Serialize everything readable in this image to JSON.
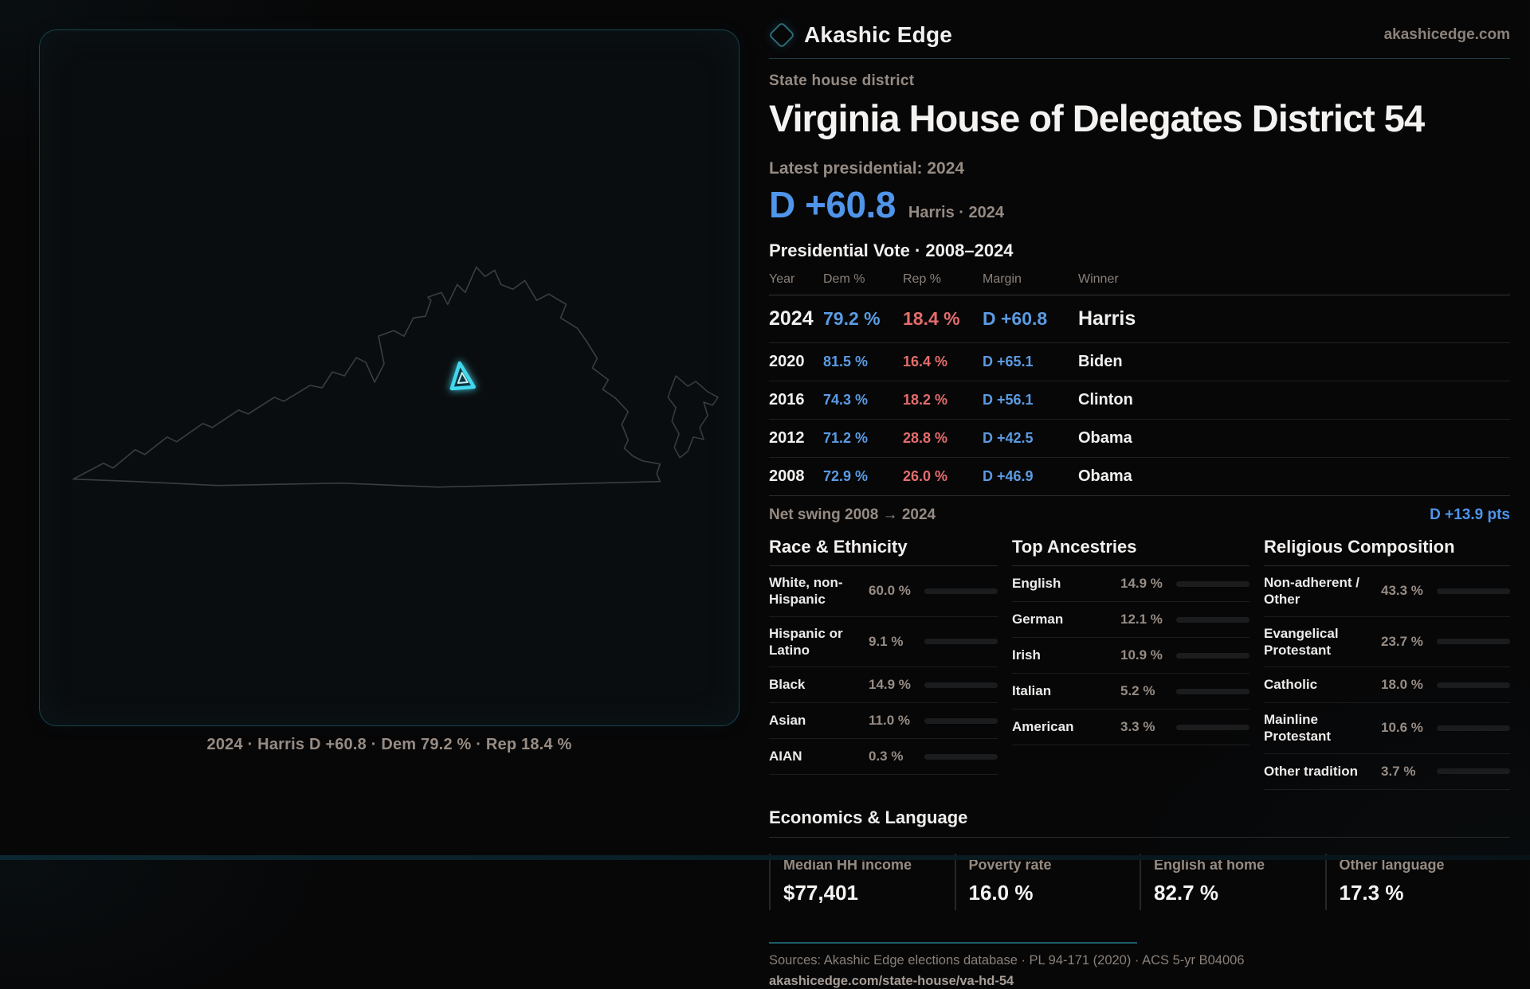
{
  "brand": {
    "name": "Akashic Edge",
    "site": "akashicedge.com",
    "logo": "diamond-icon"
  },
  "map_panel": {
    "region": "Virginia state outline",
    "highlight": "District 54 location marker",
    "caption": "2024 · Harris D +60.8 · Dem 79.2 % · Rep 18.4 %",
    "outline_color": "#3b3e41",
    "highlight_color": "#41d8ee"
  },
  "header": {
    "kicker": "State house district",
    "title": "Virginia House of Delegates District 54"
  },
  "latest": {
    "label": "Latest presidential: 2024",
    "value": "D +60.8",
    "sub": "Harris · 2024"
  },
  "vote_table": {
    "title": "Presidential Vote · 2008–2024",
    "columns": [
      "Year",
      "Dem %",
      "Rep %",
      "Margin",
      "Winner"
    ],
    "rows": [
      {
        "year": "2024",
        "dem": "79.2 %",
        "rep": "18.4 %",
        "margin": "D +60.8",
        "winner": "Harris"
      },
      {
        "year": "2020",
        "dem": "81.5 %",
        "rep": "16.4 %",
        "margin": "D +65.1",
        "winner": "Biden"
      },
      {
        "year": "2016",
        "dem": "74.3 %",
        "rep": "18.2 %",
        "margin": "D +56.1",
        "winner": "Clinton"
      },
      {
        "year": "2012",
        "dem": "71.2 %",
        "rep": "28.8 %",
        "margin": "D +42.5",
        "winner": "Obama"
      },
      {
        "year": "2008",
        "dem": "72.9 %",
        "rep": "26.0 %",
        "margin": "D +46.9",
        "winner": "Obama"
      }
    ]
  },
  "net_swing": {
    "label": "Net swing 2008 → 2024",
    "value": "D +13.9 pts"
  },
  "race": {
    "title": "Race & Ethnicity",
    "rows": [
      {
        "label": "White, non-Hispanic",
        "value": "60.0 %",
        "pct": 60.0,
        "color": "#8fa1ba"
      },
      {
        "label": "Hispanic or Latino",
        "value": "9.1 %",
        "pct": 9.1,
        "color": "#dd9b33"
      },
      {
        "label": "Black",
        "value": "14.9 %",
        "pct": 14.9,
        "color": "#9a8cf0"
      },
      {
        "label": "Asian",
        "value": "11.0 %",
        "pct": 11.0,
        "color": "#33c493"
      },
      {
        "label": "AIAN",
        "value": "0.3 %",
        "pct": 0.3,
        "color": "#8fa1ba"
      }
    ]
  },
  "ancestry": {
    "title": "Top Ancestries",
    "rows": [
      {
        "label": "English",
        "value": "14.9 %",
        "pct": 14.9,
        "color": "#8fa1ba"
      },
      {
        "label": "German",
        "value": "12.1 %",
        "pct": 12.1,
        "color": "#8fa1ba"
      },
      {
        "label": "Irish",
        "value": "10.9 %",
        "pct": 10.9,
        "color": "#8fa1ba"
      },
      {
        "label": "Italian",
        "value": "5.2 %",
        "pct": 5.2,
        "color": "#8fa1ba"
      },
      {
        "label": "American",
        "value": "3.3 %",
        "pct": 3.3,
        "color": "#b8c2d4"
      }
    ]
  },
  "religion": {
    "title": "Religious Composition",
    "rows": [
      {
        "label": "Non-adherent / Other",
        "value": "43.3 %",
        "pct": 43.3,
        "color": "#6d7b90"
      },
      {
        "label": "Evangelical Protestant",
        "value": "23.7 %",
        "pct": 23.7,
        "color": "#d96f6f"
      },
      {
        "label": "Catholic",
        "value": "18.0 %",
        "pct": 18.0,
        "color": "#dfa92d"
      },
      {
        "label": "Mainline Protestant",
        "value": "10.6 %",
        "pct": 10.6,
        "color": "#4a90d9"
      },
      {
        "label": "Other tradition",
        "value": "3.7 %",
        "pct": 3.7,
        "color": "#c9c9c9"
      }
    ]
  },
  "economics": {
    "title": "Economics & Language",
    "stats": [
      {
        "label": "Median HH income",
        "value": "$77,401"
      },
      {
        "label": "Poverty rate",
        "value": "16.0 %"
      },
      {
        "label": "English at home",
        "value": "82.7 %"
      },
      {
        "label": "Other language",
        "value": "17.3 %"
      }
    ]
  },
  "footer": {
    "sources": "Sources: Akashic Edge elections database · PL 94-171 (2020) · ACS 5-yr B04006",
    "permalink": "akashicedge.com/state-house/va-hd-54"
  }
}
